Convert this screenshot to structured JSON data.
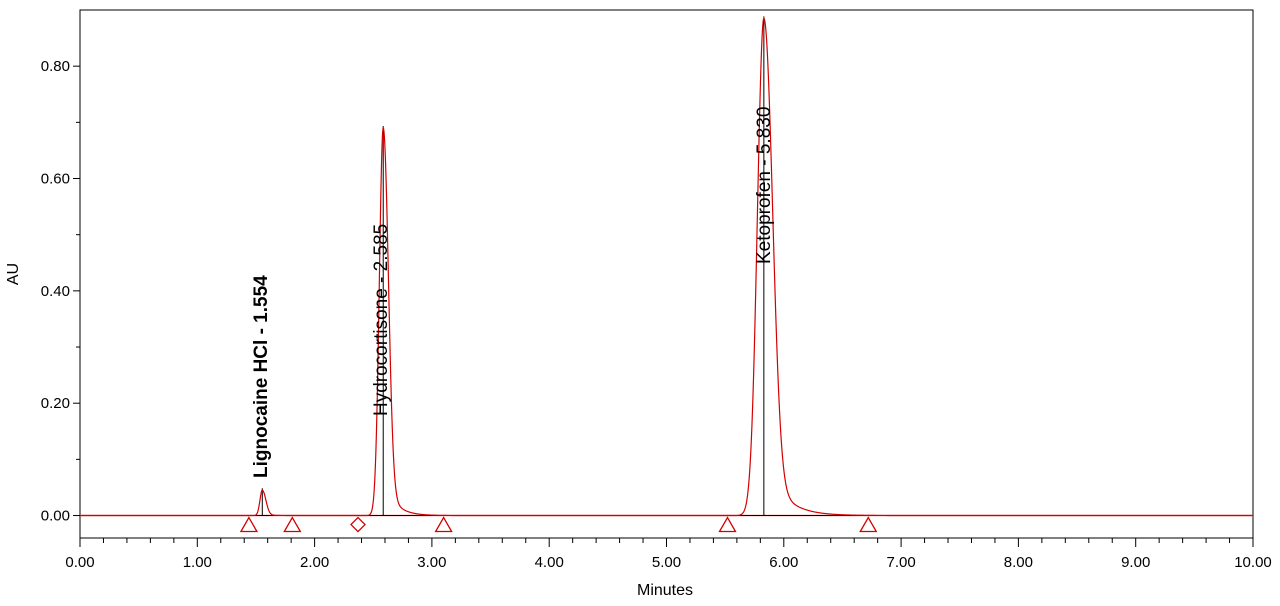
{
  "chart_data": {
    "type": "line",
    "xlabel": "Minutes",
    "ylabel": "AU",
    "xlim": [
      0,
      10
    ],
    "ylim": [
      -0.04,
      0.9
    ],
    "x_ticks": [
      "0.00",
      "1.00",
      "2.00",
      "3.00",
      "4.00",
      "5.00",
      "6.00",
      "7.00",
      "8.00",
      "9.00",
      "10.00"
    ],
    "y_ticks": [
      "0.00",
      "0.20",
      "0.40",
      "0.60",
      "0.80"
    ],
    "grid": false,
    "colors": {
      "trace": "#d40000",
      "baseline": "#f08080",
      "fit": "#000000"
    },
    "peaks": [
      {
        "label": "Lignocaine HCl - 1.554",
        "bold": true,
        "rt": 1.554,
        "height": 0.045,
        "sigma_left": 0.02,
        "sigma_right": 0.03,
        "tail": 0.05,
        "start": 1.44,
        "end": 1.81,
        "start_marker": "triangle",
        "end_marker": "triangle"
      },
      {
        "label": "Hydrocortisone - 2.585",
        "bold": false,
        "rt": 2.585,
        "height": 0.69,
        "sigma_left": 0.033,
        "sigma_right": 0.042,
        "tail": 0.1,
        "start": 2.37,
        "end": 3.1,
        "start_marker": "diamond",
        "end_marker": "triangle"
      },
      {
        "label": "Ketoprofen - 5.830",
        "bold": false,
        "rt": 5.83,
        "height": 0.885,
        "sigma_left": 0.055,
        "sigma_right": 0.07,
        "tail": 0.12,
        "start": 5.52,
        "end": 6.72,
        "start_marker": "triangle",
        "end_marker": "triangle"
      }
    ]
  }
}
